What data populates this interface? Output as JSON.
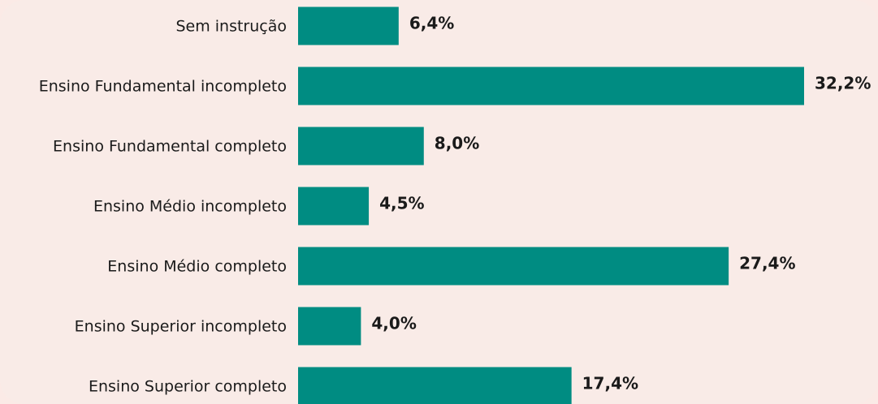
{
  "chart_data": {
    "type": "bar",
    "orientation": "horizontal",
    "categories": [
      "Sem instrução",
      "Ensino Fundamental incompleto",
      "Ensino Fundamental completo",
      "Ensino Médio incompleto",
      "Ensino Médio completo",
      "Ensino Superior incompleto",
      "Ensino Superior completo"
    ],
    "values": [
      6.4,
      32.2,
      8.0,
      4.5,
      27.4,
      4.0,
      17.4
    ],
    "value_labels": [
      "6,4%",
      "32,2%",
      "8,0%",
      "4,5%",
      "27,4%",
      "4,0%",
      "17,4%"
    ],
    "color": "#008c82"
  }
}
